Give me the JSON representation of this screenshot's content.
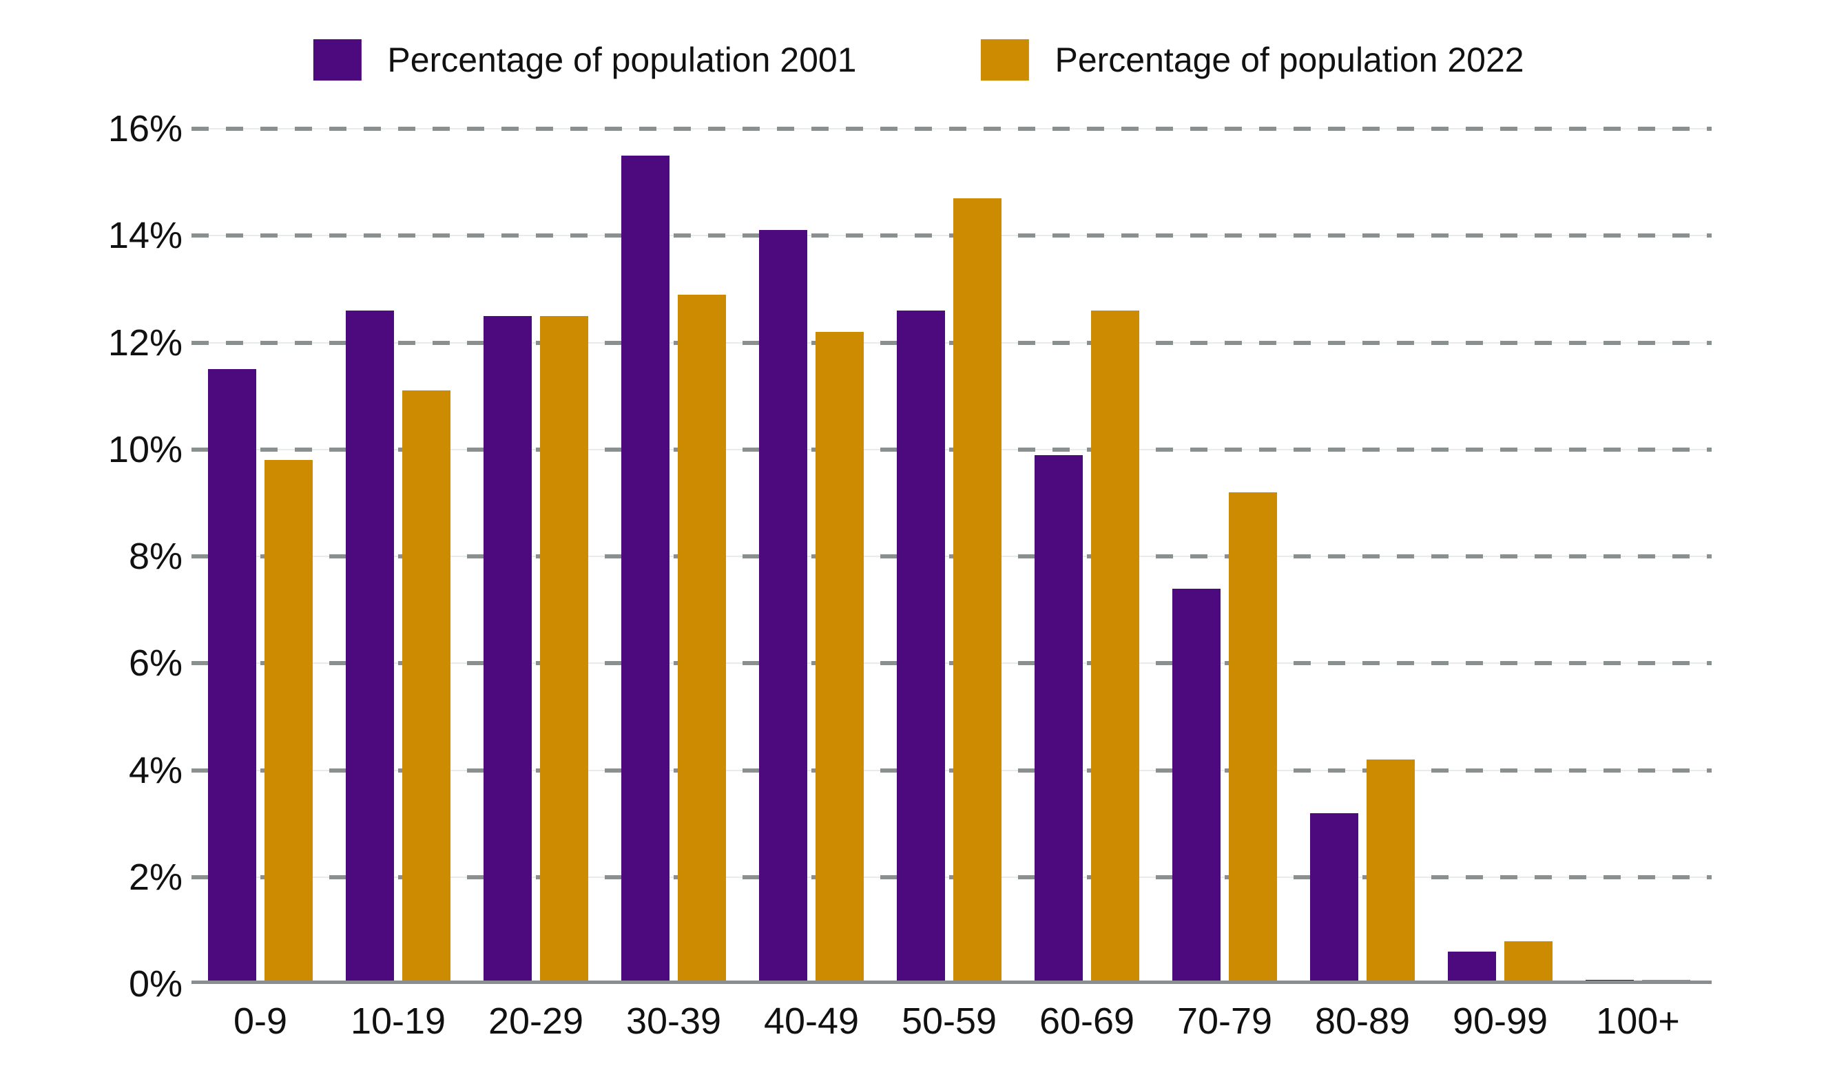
{
  "legend": {
    "items": [
      {
        "label": "Percentage of population 2001",
        "color": "#4D0A7E"
      },
      {
        "label": "Percentage of population 2022",
        "color": "#CC8B00"
      }
    ]
  },
  "chart_data": {
    "type": "bar",
    "categories": [
      "0-9",
      "10-19",
      "20-29",
      "30-39",
      "40-49",
      "50-59",
      "60-69",
      "70-79",
      "80-89",
      "90-99",
      "100+"
    ],
    "series": [
      {
        "name": "Percentage of population 2001",
        "color": "#4D0A7E",
        "values": [
          11.5,
          12.6,
          12.5,
          15.5,
          14.1,
          12.6,
          9.9,
          7.4,
          3.2,
          0.6,
          0.0
        ]
      },
      {
        "name": "Percentage of population 2022",
        "color": "#CC8B00",
        "values": [
          9.8,
          11.1,
          12.5,
          12.9,
          12.2,
          14.7,
          12.6,
          9.2,
          4.2,
          0.8,
          0.0
        ]
      }
    ],
    "title": "",
    "xlabel": "",
    "ylabel": "",
    "ylim": [
      0,
      16
    ],
    "ytick_step": 2,
    "ytick_labels": [
      "0%",
      "2%",
      "4%",
      "6%",
      "8%",
      "10%",
      "12%",
      "14%",
      "16%"
    ],
    "grid": "horizontal-dashed",
    "legend_position": "top"
  },
  "colors": {
    "grid_dash": "#8A8F90",
    "grid_faint": "#E9EAEA",
    "axis": "#898D8F",
    "text": "#111111",
    "background": "#FFFFFF"
  }
}
